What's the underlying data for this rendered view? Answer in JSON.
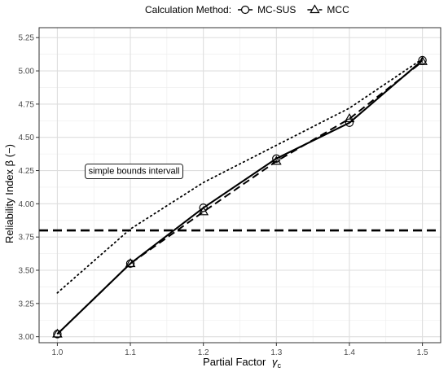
{
  "chart_data": {
    "type": "line",
    "xlabel_main": "Partial Factor",
    "xlabel_symbol": "γ",
    "xlabel_subscript": "c",
    "ylabel": "Reliability Index  β (−)",
    "x_ticks": [
      "1.0",
      "1.1",
      "1.2",
      "1.3",
      "1.4",
      "1.5"
    ],
    "y_ticks": [
      "3.00",
      "3.25",
      "3.50",
      "3.75",
      "4.00",
      "4.25",
      "4.50",
      "4.75",
      "5.00",
      "5.25"
    ],
    "xlim": [
      0.975,
      1.525
    ],
    "ylim": [
      2.955,
      5.325
    ],
    "grid": true,
    "legend_position": "top",
    "legend": {
      "title": "Calculation Method:",
      "entries": [
        {
          "label": "MC-SUS",
          "marker": "circle"
        },
        {
          "label": "MCC",
          "marker": "triangle"
        }
      ]
    },
    "series": [
      {
        "name": "MC-SUS",
        "line": "solid",
        "marker": "circle",
        "x": [
          1.0,
          1.1,
          1.2,
          1.3,
          1.4,
          1.5
        ],
        "y": [
          3.02,
          3.55,
          3.97,
          4.34,
          4.61,
          5.08
        ]
      },
      {
        "name": "MCC",
        "line": "dashed",
        "marker": "triangle",
        "x": [
          1.0,
          1.1,
          1.2,
          1.3,
          1.4,
          1.5
        ],
        "y": [
          3.02,
          3.55,
          3.94,
          4.32,
          4.64,
          5.07
        ]
      },
      {
        "name": "",
        "line": "dotted",
        "marker": "none",
        "x": [
          1.0,
          1.1,
          1.2,
          1.3,
          1.4,
          1.5
        ],
        "y": [
          3.33,
          3.81,
          4.16,
          4.44,
          4.72,
          5.09
        ]
      }
    ],
    "hline": {
      "y": 3.8,
      "style": "dashed"
    },
    "annotation": {
      "text": "simple bounds intervall",
      "x": 1.105,
      "y": 4.25
    }
  }
}
